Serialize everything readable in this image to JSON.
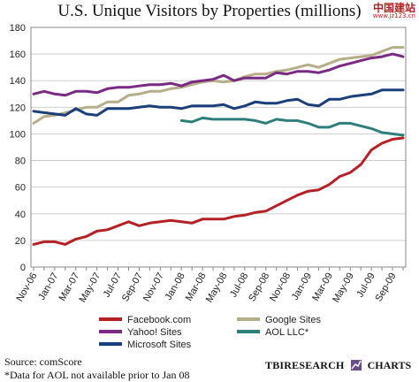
{
  "watermark": {
    "main": "中国建站",
    "url": "www.jz123.cn"
  },
  "source_lines": [
    "Source: comScore",
    "*Data for AOL not available prior to Jan 08"
  ],
  "logo": {
    "left": "TBIRESEARCH",
    "right": "CHARTS"
  },
  "chart_data": {
    "type": "line",
    "title": "U.S. Unique Visitors by Properties (millions)",
    "xlabel": "",
    "ylabel": "",
    "ylim": [
      0,
      180
    ],
    "y_ticks": [
      0,
      20,
      40,
      60,
      80,
      100,
      120,
      140,
      160,
      180
    ],
    "grid": true,
    "x_tick_labels": [
      "Nov-06",
      "Jan-07",
      "Mar-07",
      "May-07",
      "Jul-07",
      "Sep-07",
      "Nov-07",
      "Jan-08",
      "Mar-08",
      "May-08",
      "Jul-08",
      "Sep-08",
      "Nov-08",
      "Jan-09",
      "Mar-09",
      "May-09",
      "Jul-09",
      "Sep-09"
    ],
    "x": [
      "Nov-06",
      "Dec-06",
      "Jan-07",
      "Feb-07",
      "Mar-07",
      "Apr-07",
      "May-07",
      "Jun-07",
      "Jul-07",
      "Aug-07",
      "Sep-07",
      "Oct-07",
      "Nov-07",
      "Dec-07",
      "Jan-08",
      "Feb-08",
      "Mar-08",
      "Apr-08",
      "May-08",
      "Jun-08",
      "Jul-08",
      "Aug-08",
      "Sep-08",
      "Oct-08",
      "Nov-08",
      "Dec-08",
      "Jan-09",
      "Feb-09",
      "Mar-09",
      "Apr-09",
      "May-09",
      "Jun-09",
      "Jul-09",
      "Aug-09",
      "Sep-09",
      "Oct-09"
    ],
    "legend_position": "bottom",
    "series": [
      {
        "name": "Facebook.com",
        "color": "#b52025",
        "values": [
          17,
          19,
          19,
          17,
          21,
          23,
          27,
          28,
          31,
          34,
          31,
          33,
          34,
          35,
          34,
          33,
          36,
          36,
          36,
          38,
          39,
          41,
          42,
          46,
          50,
          54,
          57,
          58,
          62,
          68,
          71,
          77,
          88,
          93,
          96,
          97
        ]
      },
      {
        "name": "Google Sites",
        "color": "#b5ae88",
        "values": [
          108,
          113,
          114,
          116,
          118,
          120,
          120,
          124,
          124,
          129,
          130,
          132,
          132,
          134,
          135,
          137,
          139,
          140,
          139,
          140,
          143,
          145,
          145,
          147,
          148,
          150,
          152,
          150,
          153,
          156,
          157,
          158,
          159,
          162,
          165,
          165
        ]
      },
      {
        "name": "Yahoo! Sites",
        "color": "#7a2a82",
        "values": [
          130,
          132,
          130,
          129,
          132,
          132,
          131,
          134,
          135,
          135,
          136,
          137,
          137,
          138,
          136,
          139,
          140,
          141,
          144,
          140,
          142,
          142,
          142,
          146,
          145,
          147,
          147,
          146,
          148,
          151,
          153,
          155,
          157,
          158,
          160,
          158
        ]
      },
      {
        "name": "AOL LLC*",
        "color": "#2e7f7c",
        "values": [
          null,
          null,
          null,
          null,
          null,
          null,
          null,
          null,
          null,
          null,
          null,
          null,
          null,
          null,
          110,
          109,
          112,
          111,
          111,
          111,
          111,
          110,
          108,
          111,
          110,
          110,
          108,
          105,
          105,
          108,
          108,
          106,
          104,
          101,
          100,
          99
        ]
      },
      {
        "name": "Microsoft Sites",
        "color": "#1b3f7a",
        "values": [
          117,
          116,
          115,
          114,
          119,
          115,
          114,
          119,
          119,
          119,
          120,
          121,
          120,
          120,
          119,
          121,
          121,
          121,
          122,
          119,
          121,
          124,
          123,
          123,
          125,
          126,
          122,
          121,
          126,
          126,
          128,
          129,
          130,
          133,
          133,
          133
        ]
      }
    ]
  }
}
